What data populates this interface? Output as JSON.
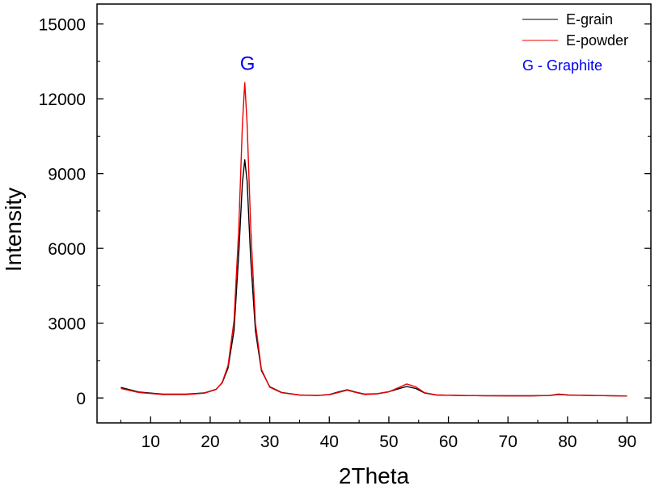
{
  "chart_data": {
    "type": "line",
    "xlabel": "2Theta",
    "ylabel": "Intensity",
    "xlim": [
      1,
      94
    ],
    "ylim": [
      -1000,
      15800
    ],
    "xticks": [
      10,
      20,
      30,
      40,
      50,
      60,
      70,
      80,
      90
    ],
    "yticks": [
      0,
      3000,
      6000,
      9000,
      12000,
      15000
    ],
    "x_minor_step": 5,
    "y_minor_step": 1500,
    "legend_position": "top-right",
    "series": [
      {
        "name": "E-grain",
        "color": "#000000",
        "points": [
          [
            5,
            420
          ],
          [
            8,
            240
          ],
          [
            12,
            150
          ],
          [
            16,
            150
          ],
          [
            19,
            200
          ],
          [
            21,
            350
          ],
          [
            22,
            600
          ],
          [
            23,
            1200
          ],
          [
            24,
            2700
          ],
          [
            24.8,
            5800
          ],
          [
            25.4,
            8600
          ],
          [
            25.8,
            9550
          ],
          [
            26.2,
            8700
          ],
          [
            26.8,
            5600
          ],
          [
            27.6,
            2700
          ],
          [
            28.6,
            1100
          ],
          [
            30,
            450
          ],
          [
            32,
            220
          ],
          [
            35,
            120
          ],
          [
            38,
            100
          ],
          [
            40,
            140
          ],
          [
            41.5,
            240
          ],
          [
            43,
            330
          ],
          [
            44.5,
            230
          ],
          [
            46,
            150
          ],
          [
            48,
            170
          ],
          [
            50,
            250
          ],
          [
            51.5,
            360
          ],
          [
            53,
            460
          ],
          [
            54.5,
            380
          ],
          [
            56,
            200
          ],
          [
            58,
            120
          ],
          [
            62,
            100
          ],
          [
            66,
            90
          ],
          [
            70,
            85
          ],
          [
            74,
            85
          ],
          [
            77,
            100
          ],
          [
            78.5,
            150
          ],
          [
            80,
            120
          ],
          [
            84,
            100
          ],
          [
            87,
            90
          ],
          [
            90,
            80
          ]
        ]
      },
      {
        "name": "E-powder",
        "color": "#ee0000",
        "points": [
          [
            5,
            380
          ],
          [
            8,
            220
          ],
          [
            12,
            140
          ],
          [
            16,
            140
          ],
          [
            19,
            190
          ],
          [
            21,
            340
          ],
          [
            22,
            620
          ],
          [
            23,
            1300
          ],
          [
            24,
            3100
          ],
          [
            24.8,
            6800
          ],
          [
            25.4,
            10900
          ],
          [
            25.8,
            12650
          ],
          [
            26.2,
            11000
          ],
          [
            26.8,
            6900
          ],
          [
            27.6,
            3000
          ],
          [
            28.6,
            1150
          ],
          [
            30,
            430
          ],
          [
            32,
            210
          ],
          [
            35,
            115
          ],
          [
            38,
            100
          ],
          [
            40,
            130
          ],
          [
            41.5,
            220
          ],
          [
            43,
            310
          ],
          [
            44.5,
            220
          ],
          [
            46,
            140
          ],
          [
            48,
            160
          ],
          [
            50,
            250
          ],
          [
            51.5,
            400
          ],
          [
            53,
            560
          ],
          [
            54.5,
            450
          ],
          [
            56,
            210
          ],
          [
            58,
            120
          ],
          [
            62,
            100
          ],
          [
            66,
            90
          ],
          [
            70,
            85
          ],
          [
            74,
            85
          ],
          [
            77,
            95
          ],
          [
            78.5,
            140
          ],
          [
            80,
            115
          ],
          [
            84,
            100
          ],
          [
            87,
            90
          ],
          [
            90,
            80
          ]
        ]
      }
    ],
    "annotations": [
      {
        "text": "G",
        "x": 26,
        "y": 13100,
        "color": "#0000ee"
      }
    ],
    "legend_note": {
      "text": "G - Graphite",
      "color": "#0000ee"
    }
  }
}
